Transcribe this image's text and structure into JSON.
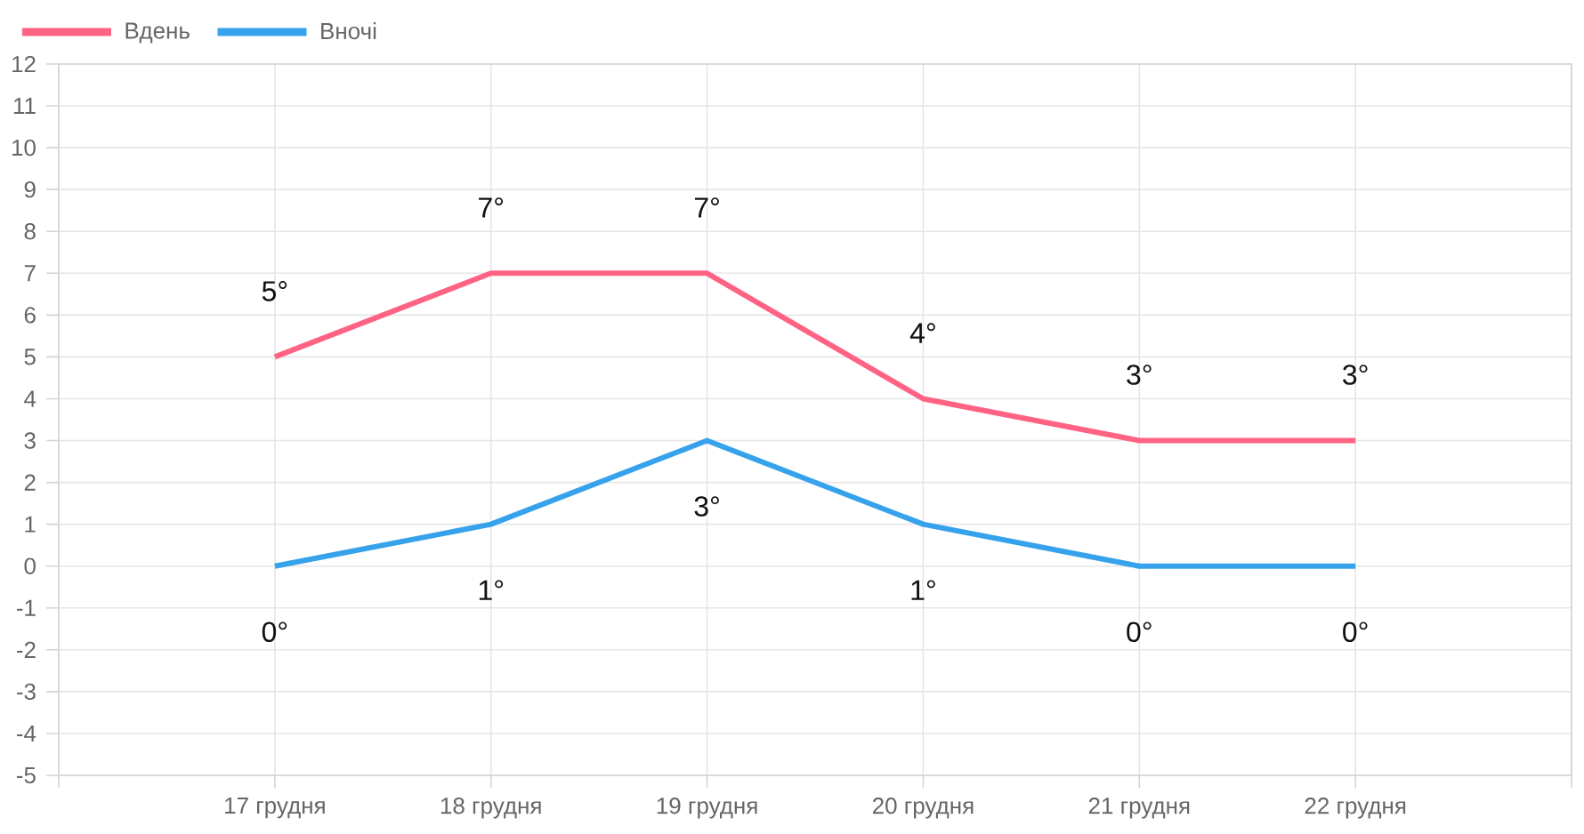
{
  "chart_data": {
    "type": "line",
    "categories": [
      null,
      "17 грудня",
      "18 грудня",
      "19 грудня",
      "20 грудня",
      "21 грудня",
      "22 грудня",
      null
    ],
    "series": [
      {
        "name": "Вдень",
        "color": "#ff6384",
        "values": [
          null,
          5,
          7,
          7,
          4,
          3,
          3,
          null
        ],
        "value_labels": [
          null,
          "5°",
          "7°",
          "7°",
          "4°",
          "3°",
          "3°",
          null
        ]
      },
      {
        "name": "Вночі",
        "color": "#36a2eb",
        "values": [
          null,
          0,
          1,
          3,
          1,
          0,
          0,
          null
        ],
        "value_labels": [
          null,
          "0°",
          "1°",
          "3°",
          "1°",
          "0°",
          "0°",
          null
        ]
      }
    ],
    "ylim": [
      -5,
      12
    ],
    "yticks": [
      -5,
      -4,
      -3,
      -2,
      -1,
      0,
      1,
      2,
      3,
      4,
      5,
      6,
      7,
      8,
      9,
      10,
      11,
      12
    ],
    "grid": true,
    "legend": "top left"
  }
}
